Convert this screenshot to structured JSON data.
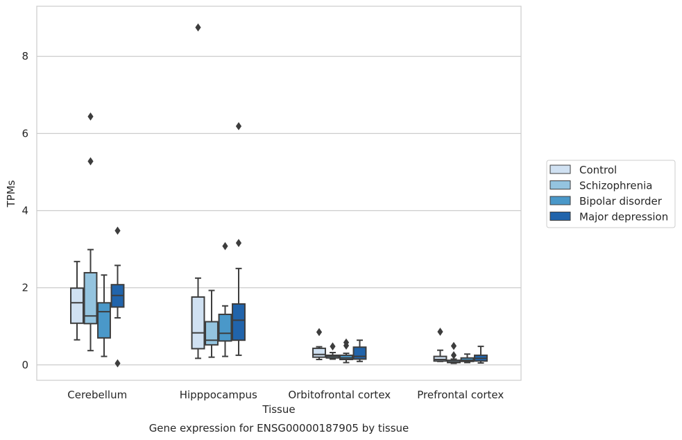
{
  "chart_data": {
    "type": "boxplot",
    "caption": "Gene expression for ENSG00000187905 by tissue",
    "xlabel": "Tissue",
    "ylabel": "TPMs",
    "ylim": [
      -0.4,
      9.3
    ],
    "yticks": [
      0,
      2,
      4,
      6,
      8
    ],
    "grid": true,
    "legend_position": "right",
    "categories": [
      "Cerebellum",
      "Hipppocampus",
      "Orbitofrontal cortex",
      "Prefrontal cortex"
    ],
    "series": [
      {
        "name": "Control",
        "color": "#d0e1f2",
        "boxes": [
          {
            "whislo": 0.65,
            "q1": 1.08,
            "med": 1.61,
            "q3": 1.99,
            "whishi": 2.68,
            "fliers": []
          },
          {
            "whislo": 0.17,
            "q1": 0.42,
            "med": 0.83,
            "q3": 1.76,
            "whishi": 2.25,
            "fliers": [
              8.75
            ]
          },
          {
            "whislo": 0.14,
            "q1": 0.2,
            "med": 0.27,
            "q3": 0.43,
            "whishi": 0.47,
            "fliers": [
              0.85
            ]
          },
          {
            "whislo": 0.09,
            "q1": 0.1,
            "med": 0.14,
            "q3": 0.22,
            "whishi": 0.38,
            "fliers": [
              0.86
            ]
          }
        ]
      },
      {
        "name": "Schizophrenia",
        "color": "#94c4df",
        "boxes": [
          {
            "whislo": 0.37,
            "q1": 1.07,
            "med": 1.27,
            "q3": 2.39,
            "whishi": 2.99,
            "fliers": [
              6.44,
              5.28
            ]
          },
          {
            "whislo": 0.2,
            "q1": 0.52,
            "med": 0.64,
            "q3": 1.12,
            "whishi": 1.93,
            "fliers": []
          },
          {
            "whislo": 0.15,
            "q1": 0.18,
            "med": 0.22,
            "q3": 0.25,
            "whishi": 0.32,
            "fliers": [
              0.48
            ]
          },
          {
            "whislo": 0.04,
            "q1": 0.06,
            "med": 0.08,
            "q3": 0.12,
            "whishi": 0.15,
            "fliers": [
              0.25,
              0.49
            ]
          }
        ]
      },
      {
        "name": "Bipolar disorder",
        "color": "#4a98c9",
        "boxes": [
          {
            "whislo": 0.22,
            "q1": 0.7,
            "med": 1.38,
            "q3": 1.61,
            "whishi": 2.33,
            "fliers": []
          },
          {
            "whislo": 0.22,
            "q1": 0.62,
            "med": 0.82,
            "q3": 1.31,
            "whishi": 1.53,
            "fliers": [
              3.08
            ]
          },
          {
            "whislo": 0.06,
            "q1": 0.14,
            "med": 0.18,
            "q3": 0.25,
            "whishi": 0.3,
            "fliers": [
              0.5,
              0.58
            ]
          },
          {
            "whislo": 0.06,
            "q1": 0.09,
            "med": 0.12,
            "q3": 0.18,
            "whishi": 0.28,
            "fliers": []
          }
        ]
      },
      {
        "name": "Major depression",
        "color": "#2164ab",
        "boxes": [
          {
            "whislo": 1.22,
            "q1": 1.5,
            "med": 1.8,
            "q3": 2.08,
            "whishi": 2.58,
            "fliers": [
              3.48,
              0.04
            ]
          },
          {
            "whislo": 0.25,
            "q1": 0.64,
            "med": 1.16,
            "q3": 1.58,
            "whishi": 2.5,
            "fliers": [
              6.19,
              3.16
            ]
          },
          {
            "whislo": 0.09,
            "q1": 0.15,
            "med": 0.22,
            "q3": 0.46,
            "whishi": 0.64,
            "fliers": []
          },
          {
            "whislo": 0.05,
            "q1": 0.1,
            "med": 0.17,
            "q3": 0.25,
            "whishi": 0.48,
            "fliers": []
          }
        ]
      }
    ]
  }
}
